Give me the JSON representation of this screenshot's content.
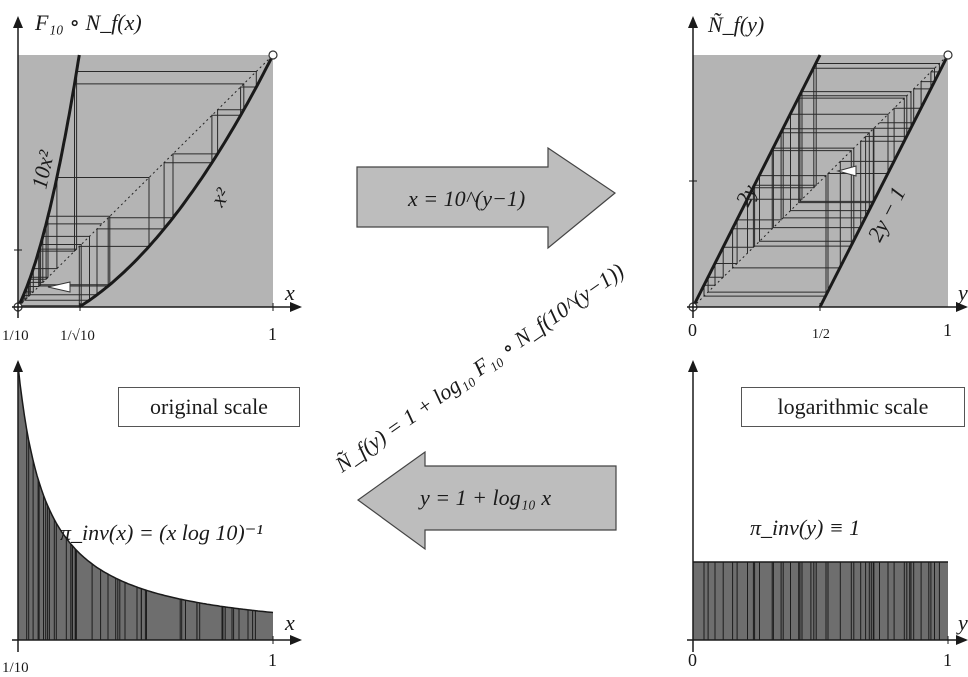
{
  "top_left": {
    "ylabel": "F₁₀ ∘ N_f(x)",
    "xlabel": "x",
    "curve_labels": [
      "10x²",
      "x²"
    ],
    "ticks": [
      "1/10",
      "1/√10",
      "1"
    ]
  },
  "top_right": {
    "ylabel": "Ñ_f(y)",
    "xlabel": "y",
    "line_labels": [
      "2y",
      "2y − 1"
    ],
    "ticks": [
      "0",
      "1/2",
      "1"
    ]
  },
  "arrows": {
    "forward": "x = 10^(y−1)",
    "backward": "y = 1 + log₁₀ x",
    "diagonal": "Ñ_f(y) = 1 + log₁₀ F₁₀ ∘ N_f(10^(y−1))"
  },
  "bottom_left": {
    "box": "original scale",
    "formula": "π_inv(x) = (x log 10)⁻¹",
    "xlabel": "x",
    "ticks": [
      "1/10",
      "1"
    ]
  },
  "bottom_right": {
    "box": "logarithmic scale",
    "formula": "π_inv(y) ≡ 1",
    "xlabel": "y",
    "ticks": [
      "0",
      "1"
    ]
  },
  "colors": {
    "panel": "#b4b4b4",
    "ink": "#1a1a1a",
    "arrow_fill": "#bdbdbd"
  }
}
